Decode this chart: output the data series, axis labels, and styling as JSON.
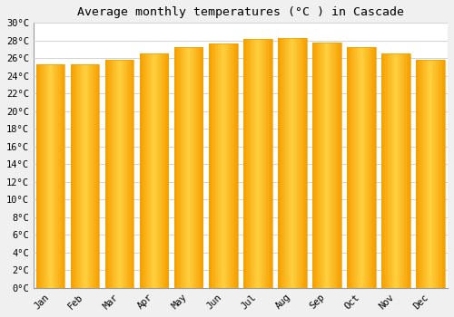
{
  "title": "Average monthly temperatures (°C ) in Cascade",
  "months": [
    "Jan",
    "Feb",
    "Mar",
    "Apr",
    "May",
    "Jun",
    "Jul",
    "Aug",
    "Sep",
    "Oct",
    "Nov",
    "Dec"
  ],
  "values": [
    25.3,
    25.3,
    25.8,
    26.5,
    27.3,
    27.7,
    28.2,
    28.3,
    27.8,
    27.3,
    26.5,
    25.8
  ],
  "bar_color_center": "#FFD040",
  "bar_color_edge": "#F5A000",
  "ylim": [
    0,
    30
  ],
  "ytick_step": 2,
  "background_color": "#F0F0F0",
  "plot_bg_color": "#FFFFFF",
  "grid_color": "#CCCCCC",
  "title_fontsize": 9.5,
  "tick_fontsize": 7.5,
  "font_family": "monospace",
  "bar_width": 0.82
}
